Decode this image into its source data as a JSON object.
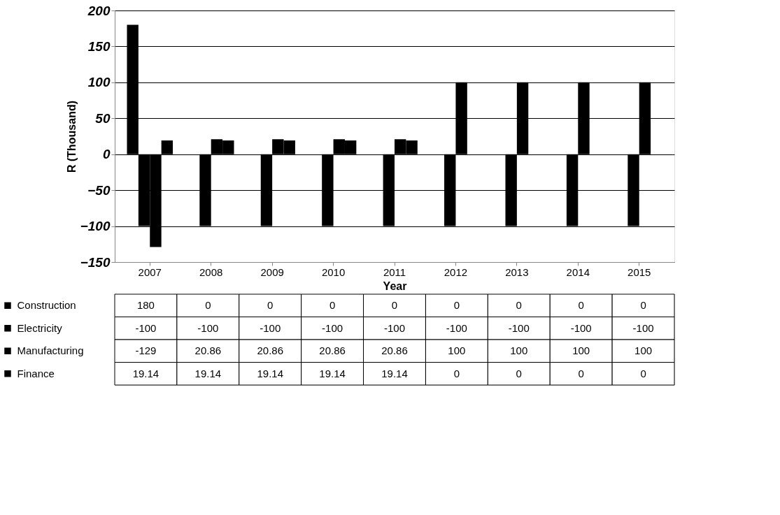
{
  "chart_data": {
    "type": "bar",
    "xlabel": "Year",
    "ylabel": "R (Thousand)",
    "categories": [
      "2007",
      "2008",
      "2009",
      "2010",
      "2011",
      "2012",
      "2013",
      "2014",
      "2015"
    ],
    "series": [
      {
        "name": "Construction",
        "color": "#000000",
        "values": [
          180,
          0,
          0,
          0,
          0,
          0,
          0,
          0,
          0
        ]
      },
      {
        "name": "Electricity",
        "color": "#000000",
        "values": [
          -100,
          -100,
          -100,
          -100,
          -100,
          -100,
          -100,
          -100,
          -100
        ]
      },
      {
        "name": "Manufacturing",
        "color": "#000000",
        "values": [
          -129,
          20.86,
          20.86,
          20.86,
          20.86,
          100,
          100,
          100,
          100
        ]
      },
      {
        "name": "Finance",
        "color": "#000000",
        "values": [
          19.14,
          19.14,
          19.14,
          19.14,
          19.14,
          0,
          0,
          0,
          0
        ]
      }
    ],
    "ylim": [
      -150,
      200
    ],
    "yticks": [
      -150,
      -100,
      -50,
      0,
      50,
      100,
      150,
      200
    ],
    "grid": "y",
    "legend": "bottom",
    "data_labels": true
  }
}
